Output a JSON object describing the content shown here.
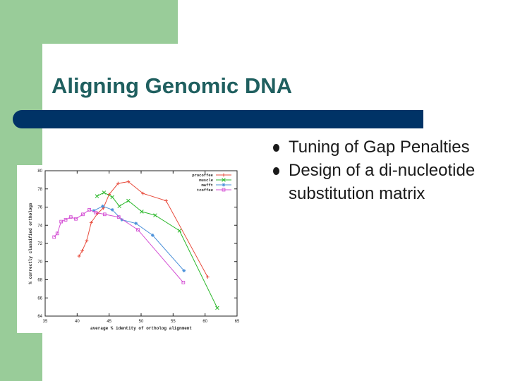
{
  "slide": {
    "title": "Aligning Genomic DNA",
    "bullets": [
      "Tuning of Gap Penalties",
      "Design of a di-nucleotide substitution matrix"
    ]
  },
  "chart_data": {
    "type": "line",
    "title": "",
    "xlabel": "average % identity of ortholog alignment",
    "ylabel": "% correctly classified orthologs",
    "xlim": [
      35,
      65
    ],
    "ylim": [
      64,
      80
    ],
    "xticks": [
      35,
      40,
      45,
      50,
      55,
      60,
      65
    ],
    "yticks": [
      64,
      66,
      68,
      70,
      72,
      74,
      76,
      78,
      80
    ],
    "legend_position": "top-right",
    "grid": false,
    "series": [
      {
        "name": "procoffee",
        "color": "#e84c3d",
        "marker": "plus",
        "x": [
          40.3,
          40.8,
          41.5,
          42.2,
          43.2,
          44.1,
          45.0,
          46.4,
          48.0,
          50.3,
          53.9,
          60.4
        ],
        "y": [
          70.6,
          71.2,
          72.3,
          74.3,
          75.3,
          75.9,
          77.4,
          78.6,
          78.8,
          77.5,
          76.7,
          68.3
        ]
      },
      {
        "name": "muscle",
        "color": "#2db82d",
        "marker": "x",
        "x": [
          43.1,
          44.2,
          45.5,
          46.6,
          48.0,
          50.1,
          52.2,
          56.0,
          61.9
        ],
        "y": [
          77.2,
          77.6,
          77.1,
          76.1,
          76.7,
          75.5,
          75.1,
          73.4,
          64.9
        ]
      },
      {
        "name": "mafft",
        "color": "#4a90d9",
        "marker": "star",
        "x": [
          42.6,
          44.0,
          45.5,
          47.0,
          49.2,
          51.8,
          56.7
        ],
        "y": [
          75.6,
          76.1,
          75.7,
          74.6,
          74.2,
          72.9,
          69.0
        ]
      },
      {
        "name": "tcoffee",
        "color": "#d44fd4",
        "marker": "square",
        "x": [
          36.4,
          36.9,
          37.5,
          38.2,
          39.0,
          39.8,
          40.9,
          41.9,
          42.9,
          44.3,
          46.5,
          49.5,
          56.6
        ],
        "y": [
          72.7,
          73.1,
          74.4,
          74.6,
          74.9,
          74.7,
          75.2,
          75.7,
          75.4,
          75.2,
          74.9,
          73.5,
          67.7
        ]
      }
    ]
  }
}
